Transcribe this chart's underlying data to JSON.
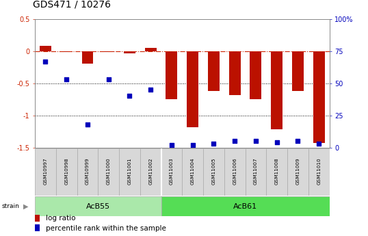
{
  "title": "GDS471 / 10276",
  "samples": [
    "GSM10997",
    "GSM10998",
    "GSM10999",
    "GSM11000",
    "GSM11001",
    "GSM11002",
    "GSM11003",
    "GSM11004",
    "GSM11005",
    "GSM11006",
    "GSM11007",
    "GSM11008",
    "GSM11009",
    "GSM11010"
  ],
  "log_ratio": [
    0.08,
    -0.02,
    -0.2,
    -0.02,
    -0.04,
    0.05,
    -0.75,
    -1.18,
    -0.62,
    -0.68,
    -0.75,
    -1.22,
    -0.62,
    -1.43
  ],
  "percentile_rank": [
    67,
    53,
    18,
    53,
    40,
    45,
    2,
    2,
    3,
    5,
    5,
    4,
    5,
    3
  ],
  "groups": [
    {
      "label": "AcB55",
      "start": 0,
      "end": 5
    },
    {
      "label": "AcB61",
      "start": 6,
      "end": 13
    }
  ],
  "group_colors": [
    "#aae8aa",
    "#55dd55"
  ],
  "ylim_left": [
    -1.5,
    0.5
  ],
  "ylim_right": [
    0,
    100
  ],
  "bar_color": "#bb1100",
  "dot_color": "#0000bb",
  "hline_color": "#cc2200",
  "dotline_values": [
    -0.5,
    -1.0
  ],
  "dotline_color": "black",
  "group_label_fontsize": 8,
  "title_fontsize": 10,
  "tick_label_fontsize": 7,
  "legend_fontsize": 7.5,
  "bar_width": 0.55,
  "dot_size": 25
}
